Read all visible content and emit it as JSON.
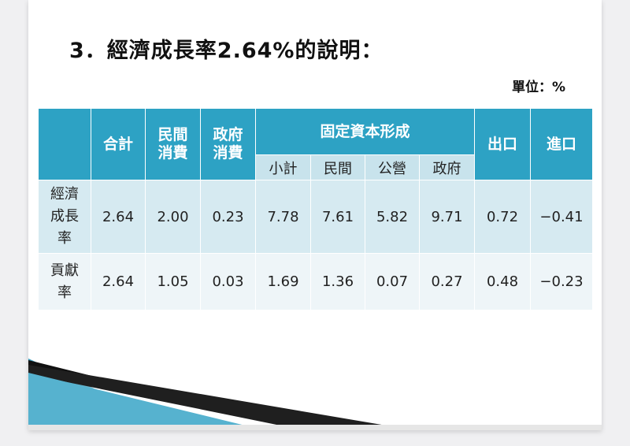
{
  "title": "3．經濟成長率2.64%的說明：",
  "unit_label": "單位：%",
  "table": {
    "headers": {
      "total": "合計",
      "private_consumption_l1": "民間",
      "private_consumption_l2": "消費",
      "government_consumption_l1": "政府",
      "government_consumption_l2": "消費",
      "gross_fixed_capital": "固定資本形成",
      "exports": "出口",
      "imports": "進口"
    },
    "subheaders": [
      "小計",
      "民間",
      "公營",
      "政府"
    ],
    "rows": [
      {
        "label_lines": [
          "經濟",
          "成長",
          "率"
        ],
        "values": [
          "2.64",
          "2.00",
          "0.23",
          "7.78",
          "7.61",
          "5.82",
          "9.71",
          "0.72",
          "−0.41"
        ]
      },
      {
        "label_lines": [
          "貢獻",
          "率"
        ],
        "values": [
          "2.64",
          "1.05",
          "0.03",
          "1.69",
          "1.36",
          "0.07",
          "0.27",
          "0.48",
          "−0.23"
        ]
      }
    ]
  }
}
